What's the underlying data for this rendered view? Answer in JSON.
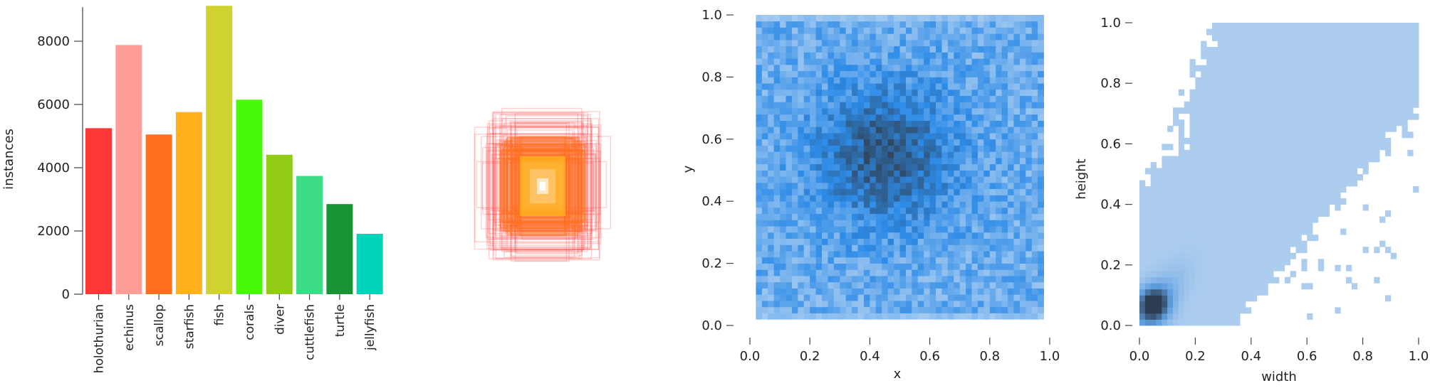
{
  "chart_data": [
    {
      "type": "bar",
      "categories": [
        "holothurian",
        "echinus",
        "scallop",
        "starfish",
        "fish",
        "corals",
        "diver",
        "cuttlefish",
        "turtle",
        "jellyfish"
      ],
      "values": [
        5250,
        7880,
        5050,
        5760,
        9120,
        6150,
        4410,
        3740,
        2850,
        1910
      ],
      "colors": [
        "#ff3838",
        "#ff9d97",
        "#ff701f",
        "#ffb21d",
        "#cfd231",
        "#48f90a",
        "#92cc17",
        "#3ddb86",
        "#1a9334",
        "#00d4bb"
      ],
      "ylabel": "instances",
      "ylim": [
        0,
        9300
      ],
      "yticks": [
        "0",
        "2000",
        "4000",
        "6000",
        "8000"
      ]
    },
    {
      "type": "other",
      "description_colors": [
        "#ff3838",
        "#ff701f",
        "#ffb21d"
      ]
    },
    {
      "type": "heatmap",
      "xlabel": "x",
      "ylabel": "y",
      "xlim": [
        0,
        1
      ],
      "ylim": [
        0,
        1
      ],
      "xticks": [
        "0.0",
        "0.2",
        "0.4",
        "0.6",
        "0.8",
        "1.0"
      ],
      "yticks": [
        "0.0",
        "0.2",
        "0.4",
        "0.6",
        "0.8",
        "1.0"
      ],
      "peak": [
        0.45,
        0.55
      ],
      "colors": [
        "#a9cdf2",
        "#2d8be7",
        "#30465e"
      ]
    },
    {
      "type": "heatmap",
      "xlabel": "width",
      "ylabel": "height",
      "xlim": [
        0,
        1
      ],
      "ylim": [
        0,
        1
      ],
      "xticks": [
        "0.0",
        "0.2",
        "0.4",
        "0.6",
        "0.8",
        "1.0"
      ],
      "yticks": [
        "0.0",
        "0.2",
        "0.4",
        "0.6",
        "0.8",
        "1.0"
      ],
      "peak": [
        0.05,
        0.07
      ],
      "colors": [
        "#b7d3f0",
        "#5f9fe0",
        "#2c3d52"
      ]
    }
  ]
}
